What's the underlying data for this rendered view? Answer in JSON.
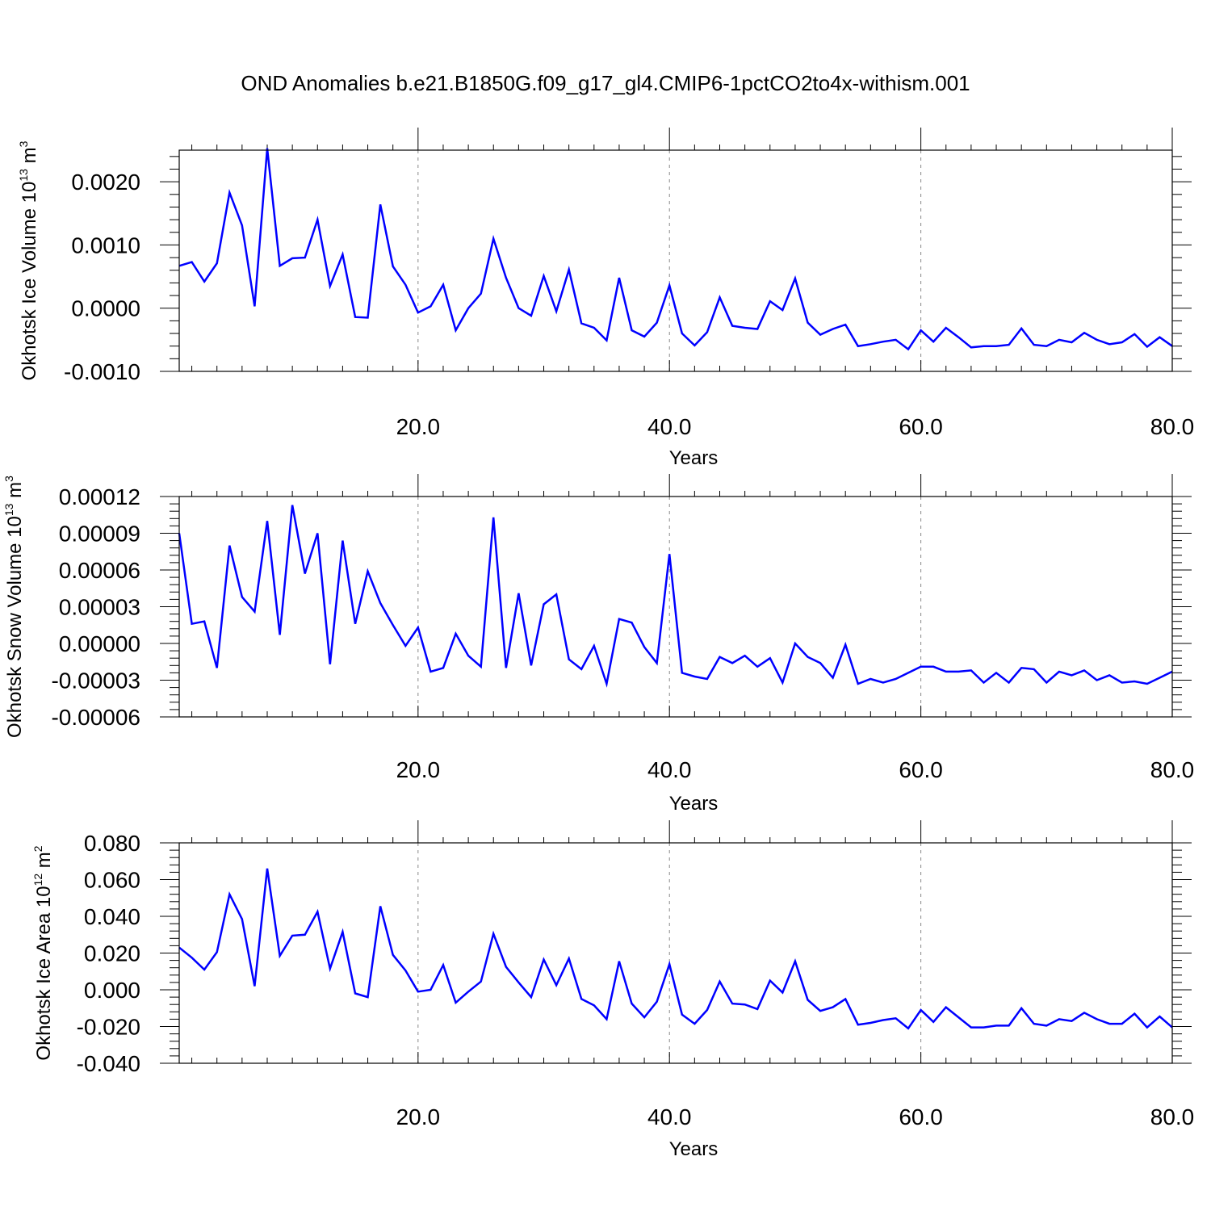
{
  "title": "OND Anomalies b.e21.B1850G.f09_g17_gl4.CMIP6-1pctCO2to4x-withism.001",
  "line_color": "#0000ff",
  "chart_data": [
    {
      "type": "line",
      "ylabel_main": "Okhotsk Ice Volume 10",
      "ylabel_exp": "13",
      "ylabel_unit": " m",
      "ylabel_unit_exp": "3",
      "xlabel": "Years",
      "xlim": [
        1,
        80
      ],
      "ylim": [
        -0.001,
        0.0025
      ],
      "grid": "vertical dashed at x ticks",
      "x_ticks": [
        20,
        40,
        60,
        80
      ],
      "x_tick_labels": [
        "20.0",
        "40.0",
        "60.0",
        "80.0"
      ],
      "y_ticks": [
        -0.001,
        0.0,
        0.001,
        0.002
      ],
      "y_tick_labels": [
        "-0.0010",
        "0.0000",
        "0.0010",
        "0.0020"
      ],
      "x": [
        1,
        2,
        3,
        4,
        5,
        6,
        7,
        8,
        9,
        10,
        11,
        12,
        13,
        14,
        15,
        16,
        17,
        18,
        19,
        20,
        21,
        22,
        23,
        24,
        25,
        26,
        27,
        28,
        29,
        30,
        31,
        32,
        33,
        34,
        35,
        36,
        37,
        38,
        39,
        40,
        41,
        42,
        43,
        44,
        45,
        46,
        47,
        48,
        49,
        50,
        51,
        52,
        53,
        54,
        55,
        56,
        57,
        58,
        59,
        60,
        61,
        62,
        63,
        64,
        65,
        66,
        67,
        68,
        69,
        70,
        71,
        72,
        73,
        74,
        75,
        76,
        77,
        78,
        79,
        80
      ],
      "y": [
        0.00067,
        0.00073,
        0.00042,
        0.00071,
        0.00183,
        0.00131,
        3e-05,
        0.00253,
        0.00067,
        0.00079,
        0.0008,
        0.0014,
        0.00035,
        0.00085,
        -0.00014,
        -0.00015,
        0.00164,
        0.00066,
        0.00037,
        -7e-05,
        3e-05,
        0.00037,
        -0.00035,
        0.0,
        0.00023,
        0.0011,
        0.00048,
        0.0,
        -0.00012,
        0.00051,
        -5e-05,
        0.00061,
        -0.00024,
        -0.00031,
        -0.00051,
        0.00048,
        -0.00035,
        -0.00045,
        -0.00023,
        0.00036,
        -0.0004,
        -0.00059,
        -0.00038,
        0.00017,
        -0.00028,
        -0.00031,
        -0.00033,
        0.00011,
        -3e-05,
        0.00047,
        -0.00023,
        -0.00042,
        -0.00033,
        -0.00026,
        -0.0006,
        -0.00057,
        -0.00053,
        -0.0005,
        -0.00065,
        -0.00035,
        -0.00053,
        -0.00031,
        -0.00046,
        -0.00062,
        -0.0006,
        -0.0006,
        -0.00058,
        -0.00032,
        -0.00058,
        -0.0006,
        -0.0005,
        -0.00054,
        -0.00039,
        -0.0005,
        -0.00057,
        -0.00054,
        -0.00041,
        -0.00061,
        -0.00046,
        -0.0006
      ]
    },
    {
      "type": "line",
      "ylabel_main": "Okhotsk Snow Volume 10",
      "ylabel_exp": "13",
      "ylabel_unit": " m",
      "ylabel_unit_exp": "3",
      "xlabel": "Years",
      "xlim": [
        1,
        80
      ],
      "ylim": [
        -6e-05,
        0.00012
      ],
      "grid": "vertical dashed at x ticks",
      "x_ticks": [
        20,
        40,
        60,
        80
      ],
      "x_tick_labels": [
        "20.0",
        "40.0",
        "60.0",
        "80.0"
      ],
      "y_ticks": [
        -6e-05,
        -3e-05,
        0.0,
        3e-05,
        6e-05,
        9e-05,
        0.00012
      ],
      "y_tick_labels": [
        "-0.00006",
        "-0.00003",
        "0.00000",
        "0.00003",
        "0.00006",
        "0.00009",
        "0.00012"
      ],
      "x": [
        1,
        2,
        3,
        4,
        5,
        6,
        7,
        8,
        9,
        10,
        11,
        12,
        13,
        14,
        15,
        16,
        17,
        18,
        19,
        20,
        21,
        22,
        23,
        24,
        25,
        26,
        27,
        28,
        29,
        30,
        31,
        32,
        33,
        34,
        35,
        36,
        37,
        38,
        39,
        40,
        41,
        42,
        43,
        44,
        45,
        46,
        47,
        48,
        49,
        50,
        51,
        52,
        53,
        54,
        55,
        56,
        57,
        58,
        59,
        60,
        61,
        62,
        63,
        64,
        65,
        66,
        67,
        68,
        69,
        70,
        71,
        72,
        73,
        74,
        75,
        76,
        77,
        78,
        79,
        80
      ],
      "y": [
        9e-05,
        1.6e-05,
        1.8e-05,
        -2e-05,
        8e-05,
        3.8e-05,
        2.6e-05,
        0.0001,
        7e-06,
        0.000113,
        5.7e-05,
        9e-05,
        -1.7e-05,
        8.4e-05,
        1.6e-05,
        5.9e-05,
        3.3e-05,
        1.5e-05,
        -2e-06,
        1.3e-05,
        -2.3e-05,
        -2e-05,
        8e-06,
        -1e-05,
        -1.9e-05,
        0.000103,
        -2e-05,
        4.1e-05,
        -1.8e-05,
        3.2e-05,
        4e-05,
        -1.3e-05,
        -2.1e-05,
        -2e-06,
        -3.3e-05,
        2e-05,
        1.7e-05,
        -3e-06,
        -1.6e-05,
        7.3e-05,
        -2.4e-05,
        -2.7e-05,
        -2.9e-05,
        -1.1e-05,
        -1.6e-05,
        -1e-05,
        -1.9e-05,
        -1.2e-05,
        -3.2e-05,
        0.0,
        -1.1e-05,
        -1.6e-05,
        -2.8e-05,
        -1e-06,
        -3.3e-05,
        -2.9e-05,
        -3.2e-05,
        -2.9e-05,
        -2.4e-05,
        -1.9e-05,
        -1.9e-05,
        -2.3e-05,
        -2.3e-05,
        -2.2e-05,
        -3.2e-05,
        -2.4e-05,
        -3.2e-05,
        -2e-05,
        -2.1e-05,
        -3.2e-05,
        -2.3e-05,
        -2.6e-05,
        -2.2e-05,
        -3e-05,
        -2.6e-05,
        -3.2e-05,
        -3.1e-05,
        -3.3e-05,
        -2.8e-05,
        -2.3e-05
      ]
    },
    {
      "type": "line",
      "ylabel_main": "Okhotsk Ice Area 10",
      "ylabel_exp": "12",
      "ylabel_unit": " m",
      "ylabel_unit_exp": "2",
      "xlabel": "Years",
      "xlim": [
        1,
        80
      ],
      "ylim": [
        -0.04,
        0.08
      ],
      "grid": "vertical dashed at x ticks",
      "x_ticks": [
        20,
        40,
        60,
        80
      ],
      "x_tick_labels": [
        "20.0",
        "40.0",
        "60.0",
        "80.0"
      ],
      "y_ticks": [
        -0.04,
        -0.02,
        0.0,
        0.02,
        0.04,
        0.06,
        0.08
      ],
      "y_tick_labels": [
        "-0.040",
        "-0.020",
        "0.000",
        "0.020",
        "0.040",
        "0.060",
        "0.080"
      ],
      "x": [
        1,
        2,
        3,
        4,
        5,
        6,
        7,
        8,
        9,
        10,
        11,
        12,
        13,
        14,
        15,
        16,
        17,
        18,
        19,
        20,
        21,
        22,
        23,
        24,
        25,
        26,
        27,
        28,
        29,
        30,
        31,
        32,
        33,
        34,
        35,
        36,
        37,
        38,
        39,
        40,
        41,
        42,
        43,
        44,
        45,
        46,
        47,
        48,
        49,
        50,
        51,
        52,
        53,
        54,
        55,
        56,
        57,
        58,
        59,
        60,
        61,
        62,
        63,
        64,
        65,
        66,
        67,
        68,
        69,
        70,
        71,
        72,
        73,
        74,
        75,
        76,
        77,
        78,
        79,
        80
      ],
      "y": [
        0.023,
        0.0175,
        0.011,
        0.0205,
        0.052,
        0.0385,
        0.002,
        0.066,
        0.0185,
        0.0295,
        0.03,
        0.0425,
        0.0115,
        0.0315,
        -0.002,
        -0.004,
        0.0455,
        0.019,
        0.0105,
        -0.001,
        0.0,
        0.0135,
        -0.007,
        -0.001,
        0.0045,
        0.0305,
        0.0125,
        0.004,
        -0.004,
        0.0165,
        0.0025,
        0.017,
        -0.005,
        -0.0085,
        -0.016,
        0.0155,
        -0.0075,
        -0.015,
        -0.0065,
        0.014,
        -0.0135,
        -0.0185,
        -0.011,
        0.0045,
        -0.0075,
        -0.008,
        -0.0105,
        0.005,
        -0.0015,
        0.0155,
        -0.0055,
        -0.0115,
        -0.0095,
        -0.005,
        -0.019,
        -0.018,
        -0.0165,
        -0.0155,
        -0.021,
        -0.011,
        -0.0175,
        -0.0095,
        -0.015,
        -0.0205,
        -0.0205,
        -0.0195,
        -0.0195,
        -0.01,
        -0.0185,
        -0.0195,
        -0.016,
        -0.017,
        -0.0125,
        -0.016,
        -0.0185,
        -0.0185,
        -0.013,
        -0.0205,
        -0.0145,
        -0.0205
      ]
    }
  ]
}
